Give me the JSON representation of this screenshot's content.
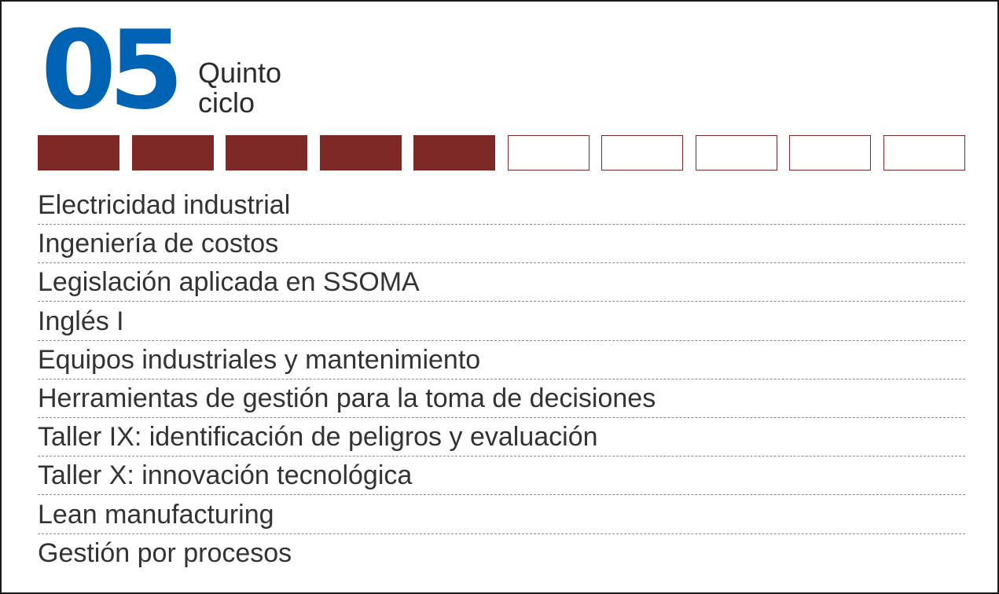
{
  "cycle": {
    "number": "05",
    "label_line1": "Quinto",
    "label_line2": "ciclo"
  },
  "progress": {
    "total": 10,
    "completed": 5,
    "filled_color": "#7d2a27",
    "number_color": "#0062b3"
  },
  "courses": [
    "Electricidad industrial",
    "Ingeniería de costos",
    "Legislación aplicada en SSOMA",
    "Inglés I",
    "Equipos industriales y mantenimiento",
    "Herramientas de gestión para la toma de decisiones",
    "Taller IX: identificación de peligros y evaluación",
    "Taller X: innovación tecnológica",
    "Lean manufacturing",
    "Gestión por procesos"
  ]
}
